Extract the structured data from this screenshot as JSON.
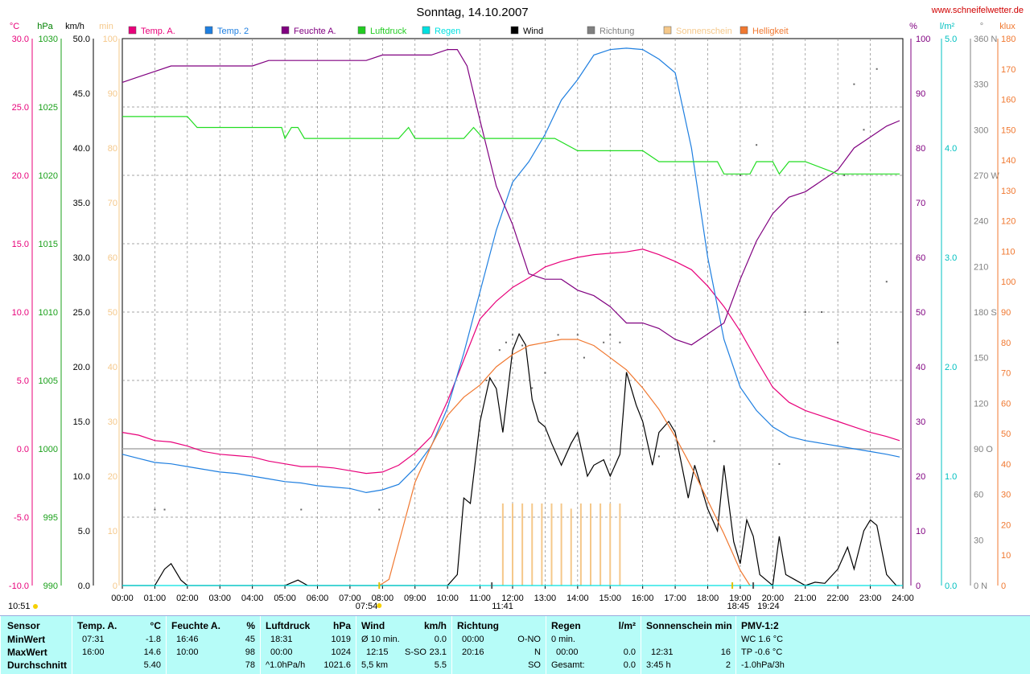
{
  "header": {
    "title": "Sonntag, 14.10.2007",
    "url": "www.schneifelwetter.de"
  },
  "legend": [
    {
      "label": "Temp. A.",
      "color": "#e8007a"
    },
    {
      "label": "Temp. 2",
      "color": "#1f7fe0"
    },
    {
      "label": "Feuchte A.",
      "color": "#800080"
    },
    {
      "label": "Luftdruck",
      "color": "#22cc22"
    },
    {
      "label": "Regen",
      "color": "#00e0e0"
    },
    {
      "label": "Wind",
      "color": "#000000"
    },
    {
      "label": "Richtung",
      "color": "#808080"
    },
    {
      "label": "Sonnenschein",
      "color": "#f5c88a"
    },
    {
      "label": "Helligkeit",
      "color": "#f07830"
    }
  ],
  "axes": {
    "temp_unit": "°C",
    "pressure_unit": "hPa",
    "wind_unit": "km/h",
    "sun_unit": "min",
    "hum_unit": "%",
    "rain_unit": "l/m²",
    "dir_unit": "°",
    "lux_unit": "klux",
    "temp_ticks": [
      "30.0",
      "25.0",
      "20.0",
      "15.0",
      "10.0",
      "5.0",
      "0.0",
      "-5.0",
      "-10.0"
    ],
    "pressure_ticks": [
      "1030",
      "1025",
      "1020",
      "1015",
      "1010",
      "1005",
      "1000",
      "995",
      "990"
    ],
    "wind_ticks": [
      "50.0",
      "45.0",
      "40.0",
      "35.0",
      "30.0",
      "25.0",
      "20.0",
      "15.0",
      "10.0",
      "5.0",
      "0.0"
    ],
    "sun_ticks": [
      "100",
      "90",
      "80",
      "70",
      "60",
      "50",
      "40",
      "30",
      "20",
      "10",
      "0"
    ],
    "hum_ticks": [
      "100",
      "90",
      "80",
      "70",
      "60",
      "50",
      "40",
      "30",
      "20",
      "10",
      "0"
    ],
    "rain_ticks": [
      "5.0",
      "4.0",
      "3.0",
      "2.0",
      "1.0",
      "0.0"
    ],
    "dir_ticks": [
      "360 N",
      "330",
      "300",
      "270 W",
      "240",
      "210",
      "180 S",
      "150",
      "120",
      "90 O",
      "60",
      "30",
      "0 N"
    ],
    "lux_ticks": [
      "180",
      "170",
      "160",
      "150",
      "140",
      "130",
      "120",
      "110",
      "100",
      "90",
      "80",
      "70",
      "60",
      "50",
      "40",
      "30",
      "20",
      "10",
      "0"
    ],
    "time_ticks": [
      "00:00",
      "01:00",
      "02:00",
      "03:00",
      "04:00",
      "05:00",
      "06:00",
      "07:00",
      "08:00",
      "09:00",
      "10:00",
      "11:00",
      "12:00",
      "13:00",
      "14:00",
      "15:00",
      "16:00",
      "17:00",
      "18:00",
      "19:00",
      "20:00",
      "21:00",
      "22:00",
      "23:00",
      "24:00"
    ]
  },
  "markers": {
    "current_time": "10:51",
    "sunrise": "07:54",
    "noon": "11:41",
    "sunset": "19:24",
    "sunset_civil": "18:45"
  },
  "chart_data": {
    "type": "line",
    "title": "Sonntag, 14.10.2007",
    "x_unit": "hours",
    "xlim": [
      0,
      24
    ],
    "series": [
      {
        "name": "Temp. A.",
        "unit": "°C",
        "ylim": [
          -10,
          30
        ],
        "x": [
          0,
          0.5,
          1,
          1.5,
          2,
          2.5,
          3,
          3.5,
          4,
          4.5,
          5,
          5.5,
          6,
          6.5,
          7,
          7.5,
          8,
          8.5,
          9,
          9.5,
          10,
          10.5,
          11,
          11.5,
          12,
          12.5,
          13,
          13.5,
          14,
          14.5,
          15,
          15.5,
          16,
          16.5,
          17,
          17.5,
          18,
          18.5,
          19,
          19.5,
          20,
          20.5,
          21,
          21.5,
          22,
          22.5,
          23,
          23.5,
          23.9
        ],
        "y": [
          1.2,
          1.0,
          0.6,
          0.5,
          0.2,
          -0.2,
          -0.4,
          -0.5,
          -0.6,
          -0.9,
          -1.1,
          -1.3,
          -1.3,
          -1.4,
          -1.6,
          -1.8,
          -1.7,
          -1.2,
          -0.3,
          0.9,
          3.5,
          6.5,
          9.5,
          10.8,
          11.8,
          12.5,
          13.3,
          13.7,
          14.0,
          14.2,
          14.3,
          14.4,
          14.6,
          14.2,
          13.7,
          13.1,
          11.9,
          10.4,
          8.6,
          6.5,
          4.5,
          3.4,
          2.8,
          2.4,
          2.0,
          1.6,
          1.2,
          0.9,
          0.6
        ]
      },
      {
        "name": "Temp. 2",
        "unit": "°C",
        "ylim": [
          -10,
          30
        ],
        "x": [
          0,
          0.5,
          1,
          1.5,
          2,
          2.5,
          3,
          3.5,
          4,
          4.5,
          5,
          5.5,
          6,
          6.5,
          7,
          7.5,
          8,
          8.5,
          9,
          9.5,
          10,
          10.5,
          11,
          11.5,
          12,
          12.5,
          13,
          13.5,
          14,
          14.5,
          15,
          15.5,
          16,
          16.5,
          17,
          17.5,
          18,
          18.5,
          19,
          19.5,
          20,
          20.5,
          21,
          21.5,
          22,
          22.5,
          23,
          23.5,
          23.9
        ],
        "y": [
          -0.4,
          -0.7,
          -1.0,
          -1.1,
          -1.3,
          -1.5,
          -1.7,
          -1.8,
          -2.0,
          -2.2,
          -2.4,
          -2.5,
          -2.7,
          -2.8,
          -2.9,
          -3.2,
          -3.0,
          -2.6,
          -1.4,
          0.2,
          3.0,
          7.0,
          11.5,
          16.0,
          19.5,
          21.0,
          23.0,
          25.5,
          27.0,
          28.8,
          29.2,
          29.3,
          29.2,
          28.5,
          27.5,
          22.0,
          14.0,
          8.0,
          4.5,
          2.8,
          1.6,
          0.9,
          0.6,
          0.4,
          0.2,
          0.0,
          -0.2,
          -0.4,
          -0.6
        ]
      },
      {
        "name": "Feuchte A.",
        "unit": "%",
        "ylim": [
          0,
          100
        ],
        "x": [
          0,
          0.5,
          1,
          1.5,
          2,
          2.5,
          3,
          3.5,
          4,
          4.5,
          5,
          5.5,
          6,
          6.5,
          7,
          7.5,
          8,
          8.5,
          9,
          9.5,
          10,
          10.3,
          10.6,
          11,
          11.5,
          12,
          12.5,
          13,
          13.5,
          14,
          14.5,
          15,
          15.5,
          16,
          16.5,
          17,
          17.5,
          18,
          18.5,
          19,
          19.5,
          20,
          20.5,
          21,
          21.5,
          22,
          22.5,
          23,
          23.5,
          23.9
        ],
        "y": [
          92,
          93,
          94,
          95,
          95,
          95,
          95,
          95,
          95,
          96,
          96,
          96,
          96,
          96,
          96,
          96,
          97,
          97,
          97,
          97,
          98,
          98,
          95,
          85,
          73,
          66,
          57,
          56,
          56,
          54,
          53,
          51,
          48,
          48,
          47,
          45,
          44,
          46,
          48,
          56,
          63,
          68,
          71,
          72,
          74,
          76,
          80,
          82,
          84,
          85
        ]
      },
      {
        "name": "Luftdruck",
        "unit": "hPa",
        "ylim": [
          990,
          1030
        ],
        "x": [
          0,
          1,
          2,
          2.3,
          3,
          4,
          4.5,
          4.9,
          5.0,
          5.2,
          5.4,
          5.6,
          6,
          7,
          8,
          8.5,
          8.8,
          9,
          10,
          10.5,
          10.8,
          11.1,
          12,
          13,
          13.3,
          14,
          15,
          16,
          16.5,
          17,
          18,
          18.3,
          18.5,
          19,
          19.3,
          19.5,
          20,
          20.2,
          20.5,
          21,
          22,
          23,
          23.9
        ],
        "y": [
          1024.3,
          1024.3,
          1024.3,
          1023.5,
          1023.5,
          1023.5,
          1023.5,
          1023.5,
          1022.7,
          1023.5,
          1023.5,
          1022.7,
          1022.7,
          1022.7,
          1022.7,
          1022.7,
          1023.5,
          1022.7,
          1022.7,
          1022.7,
          1023.5,
          1022.7,
          1022.7,
          1022.7,
          1022.7,
          1021.8,
          1021.8,
          1021.8,
          1021.0,
          1021.0,
          1021.0,
          1021.0,
          1020.1,
          1020.1,
          1020.1,
          1021.0,
          1021.0,
          1020.1,
          1021.0,
          1021.0,
          1020.1,
          1020.1,
          1020.1
        ]
      },
      {
        "name": "Wind",
        "unit": "km/h",
        "ylim": [
          0,
          50
        ],
        "x": [
          0,
          0.5,
          0.8,
          1.0,
          1.3,
          1.5,
          1.8,
          2,
          3,
          4,
          5,
          5.4,
          5.7,
          6,
          7,
          7.5,
          8,
          8.5,
          9,
          9.5,
          10,
          10.3,
          10.5,
          10.7,
          11,
          11.3,
          11.5,
          11.7,
          12,
          12.2,
          12.4,
          12.6,
          12.8,
          13,
          13.2,
          13.5,
          13.8,
          14,
          14.3,
          14.5,
          14.8,
          15,
          15.3,
          15.5,
          15.8,
          16,
          16.3,
          16.5,
          16.8,
          17,
          17.2,
          17.4,
          17.6,
          17.8,
          18,
          18.3,
          18.5,
          18.8,
          19,
          19.2,
          19.4,
          19.6,
          20,
          20.2,
          20.4,
          20.7,
          21,
          21.3,
          21.6,
          22,
          22.3,
          22.5,
          22.8,
          23,
          23.2,
          23.5,
          23.8,
          23.9
        ],
        "y": [
          0,
          0,
          0,
          0,
          1.5,
          2.0,
          0.5,
          0,
          0,
          0,
          0,
          0.5,
          0,
          0,
          0,
          0,
          0,
          0,
          0,
          0,
          0,
          1.0,
          8,
          7.5,
          15,
          19,
          18,
          14,
          21.5,
          23,
          22,
          17,
          15,
          14.5,
          13,
          11,
          13,
          14,
          10,
          11,
          11.5,
          10,
          12,
          19.5,
          16.5,
          15,
          11,
          14,
          15,
          14,
          11,
          8,
          11,
          9,
          7,
          5,
          11,
          4,
          2,
          6,
          4.5,
          1,
          0,
          4.5,
          1,
          0.5,
          0,
          0.3,
          0.2,
          1.5,
          3.5,
          1.5,
          5,
          6,
          5.5,
          1,
          0,
          0
        ]
      },
      {
        "name": "Helligkeit",
        "unit": "klux",
        "ylim": [
          0,
          180
        ],
        "x": [
          7.9,
          8.2,
          8.6,
          9,
          9.5,
          10,
          10.5,
          11,
          11.5,
          12,
          12.5,
          13,
          13.5,
          14,
          14.5,
          15,
          15.5,
          16,
          16.5,
          17,
          17.5,
          18,
          18.5,
          19,
          19.3
        ],
        "y": [
          0,
          2,
          18,
          34,
          46,
          56,
          62,
          66,
          72,
          76,
          79,
          80,
          81,
          81,
          79,
          75,
          71,
          65,
          58,
          49,
          39,
          28,
          17,
          5,
          0
        ]
      },
      {
        "name": "Regen",
        "unit": "l/m²",
        "ylim": [
          0,
          5
        ],
        "x": [
          0,
          24
        ],
        "y": [
          0,
          0
        ]
      }
    ],
    "direction_points": {
      "x": [
        1.0,
        1.3,
        5.5,
        7.9,
        11.2,
        11.6,
        11.8,
        12.0,
        12.3,
        12.6,
        13.0,
        13.4,
        14.0,
        14.2,
        14.8,
        15.0,
        15.3,
        16.0,
        16.5,
        17.0,
        18.2,
        19.0,
        19.5,
        20.2,
        21.0,
        21.5,
        22.0,
        22.2,
        22.5,
        22.8,
        23.2,
        23.5
      ],
      "y": [
        50,
        50,
        50,
        50,
        135,
        155,
        160,
        165,
        158,
        130,
        140,
        165,
        165,
        150,
        160,
        165,
        160,
        90,
        85,
        90,
        95,
        270,
        290,
        80,
        180,
        180,
        160,
        270,
        330,
        300,
        340,
        200
      ]
    },
    "sunshine_bars_hours": [
      11.7,
      12.0,
      12.3,
      12.6,
      12.9,
      13.2,
      13.5,
      13.8,
      14.1,
      14.4,
      14.7,
      15.0,
      15.3
    ],
    "sunshine_bar_minutes": [
      16,
      16,
      16,
      16,
      16,
      16,
      16,
      15,
      16,
      16,
      16,
      16,
      16
    ]
  },
  "stats": {
    "headers": {
      "sensor": "Sensor",
      "temp": "Temp. A.",
      "temp_unit": "°C",
      "hum": "Feuchte A.",
      "hum_unit": "%",
      "press": "Luftdruck",
      "press_unit": "hPa",
      "wind": "Wind",
      "wind_unit": "km/h",
      "dir": "Richtung",
      "rain": "Regen",
      "rain_unit": "l/m²",
      "sun": "Sonnenschein min",
      "pmv": "PMV-1:2"
    },
    "rows": [
      {
        "label": "MinWert",
        "temp_time": "07:31",
        "temp_val": "-1.8",
        "hum_time": "16:46",
        "hum_val": "45",
        "press_time": "18:31",
        "press_val": "1019",
        "wind_a": "Ø 10 min.",
        "wind_b": "",
        "wind_val": "0.0",
        "dir_time": "00:00",
        "dir_val": "O-NO",
        "rain_a": "0 min.",
        "rain_val": "",
        "sun_a": "",
        "sun_val": "",
        "pmv": "WC 1.6 °C"
      },
      {
        "label": "MaxWert",
        "temp_time": "16:00",
        "temp_val": "14.6",
        "hum_time": "10:00",
        "hum_val": "98",
        "press_time": "00:00",
        "press_val": "1024",
        "wind_a": "12:15",
        "wind_b": "S-SO",
        "wind_val": "23.1",
        "dir_time": "20:16",
        "dir_val": "N",
        "rain_a": "00:00",
        "rain_val": "0.0",
        "sun_a": "12:31",
        "sun_val": "16",
        "pmv": "TP -0.6 °C"
      },
      {
        "label": "Durchschnitt",
        "temp_time": "",
        "temp_val": "5.40",
        "hum_time": "",
        "hum_val": "78",
        "press_time": "^1.0hPa/h",
        "press_val": "1021.6",
        "wind_a": "5,5 km",
        "wind_b": "",
        "wind_val": "5.5",
        "dir_time": "",
        "dir_val": "SO",
        "rain_a": "Gesamt:",
        "rain_val": "0.0",
        "sun_a": "3:45 h",
        "sun_val": "2",
        "pmv": "-1.0hPa/3h"
      }
    ]
  }
}
